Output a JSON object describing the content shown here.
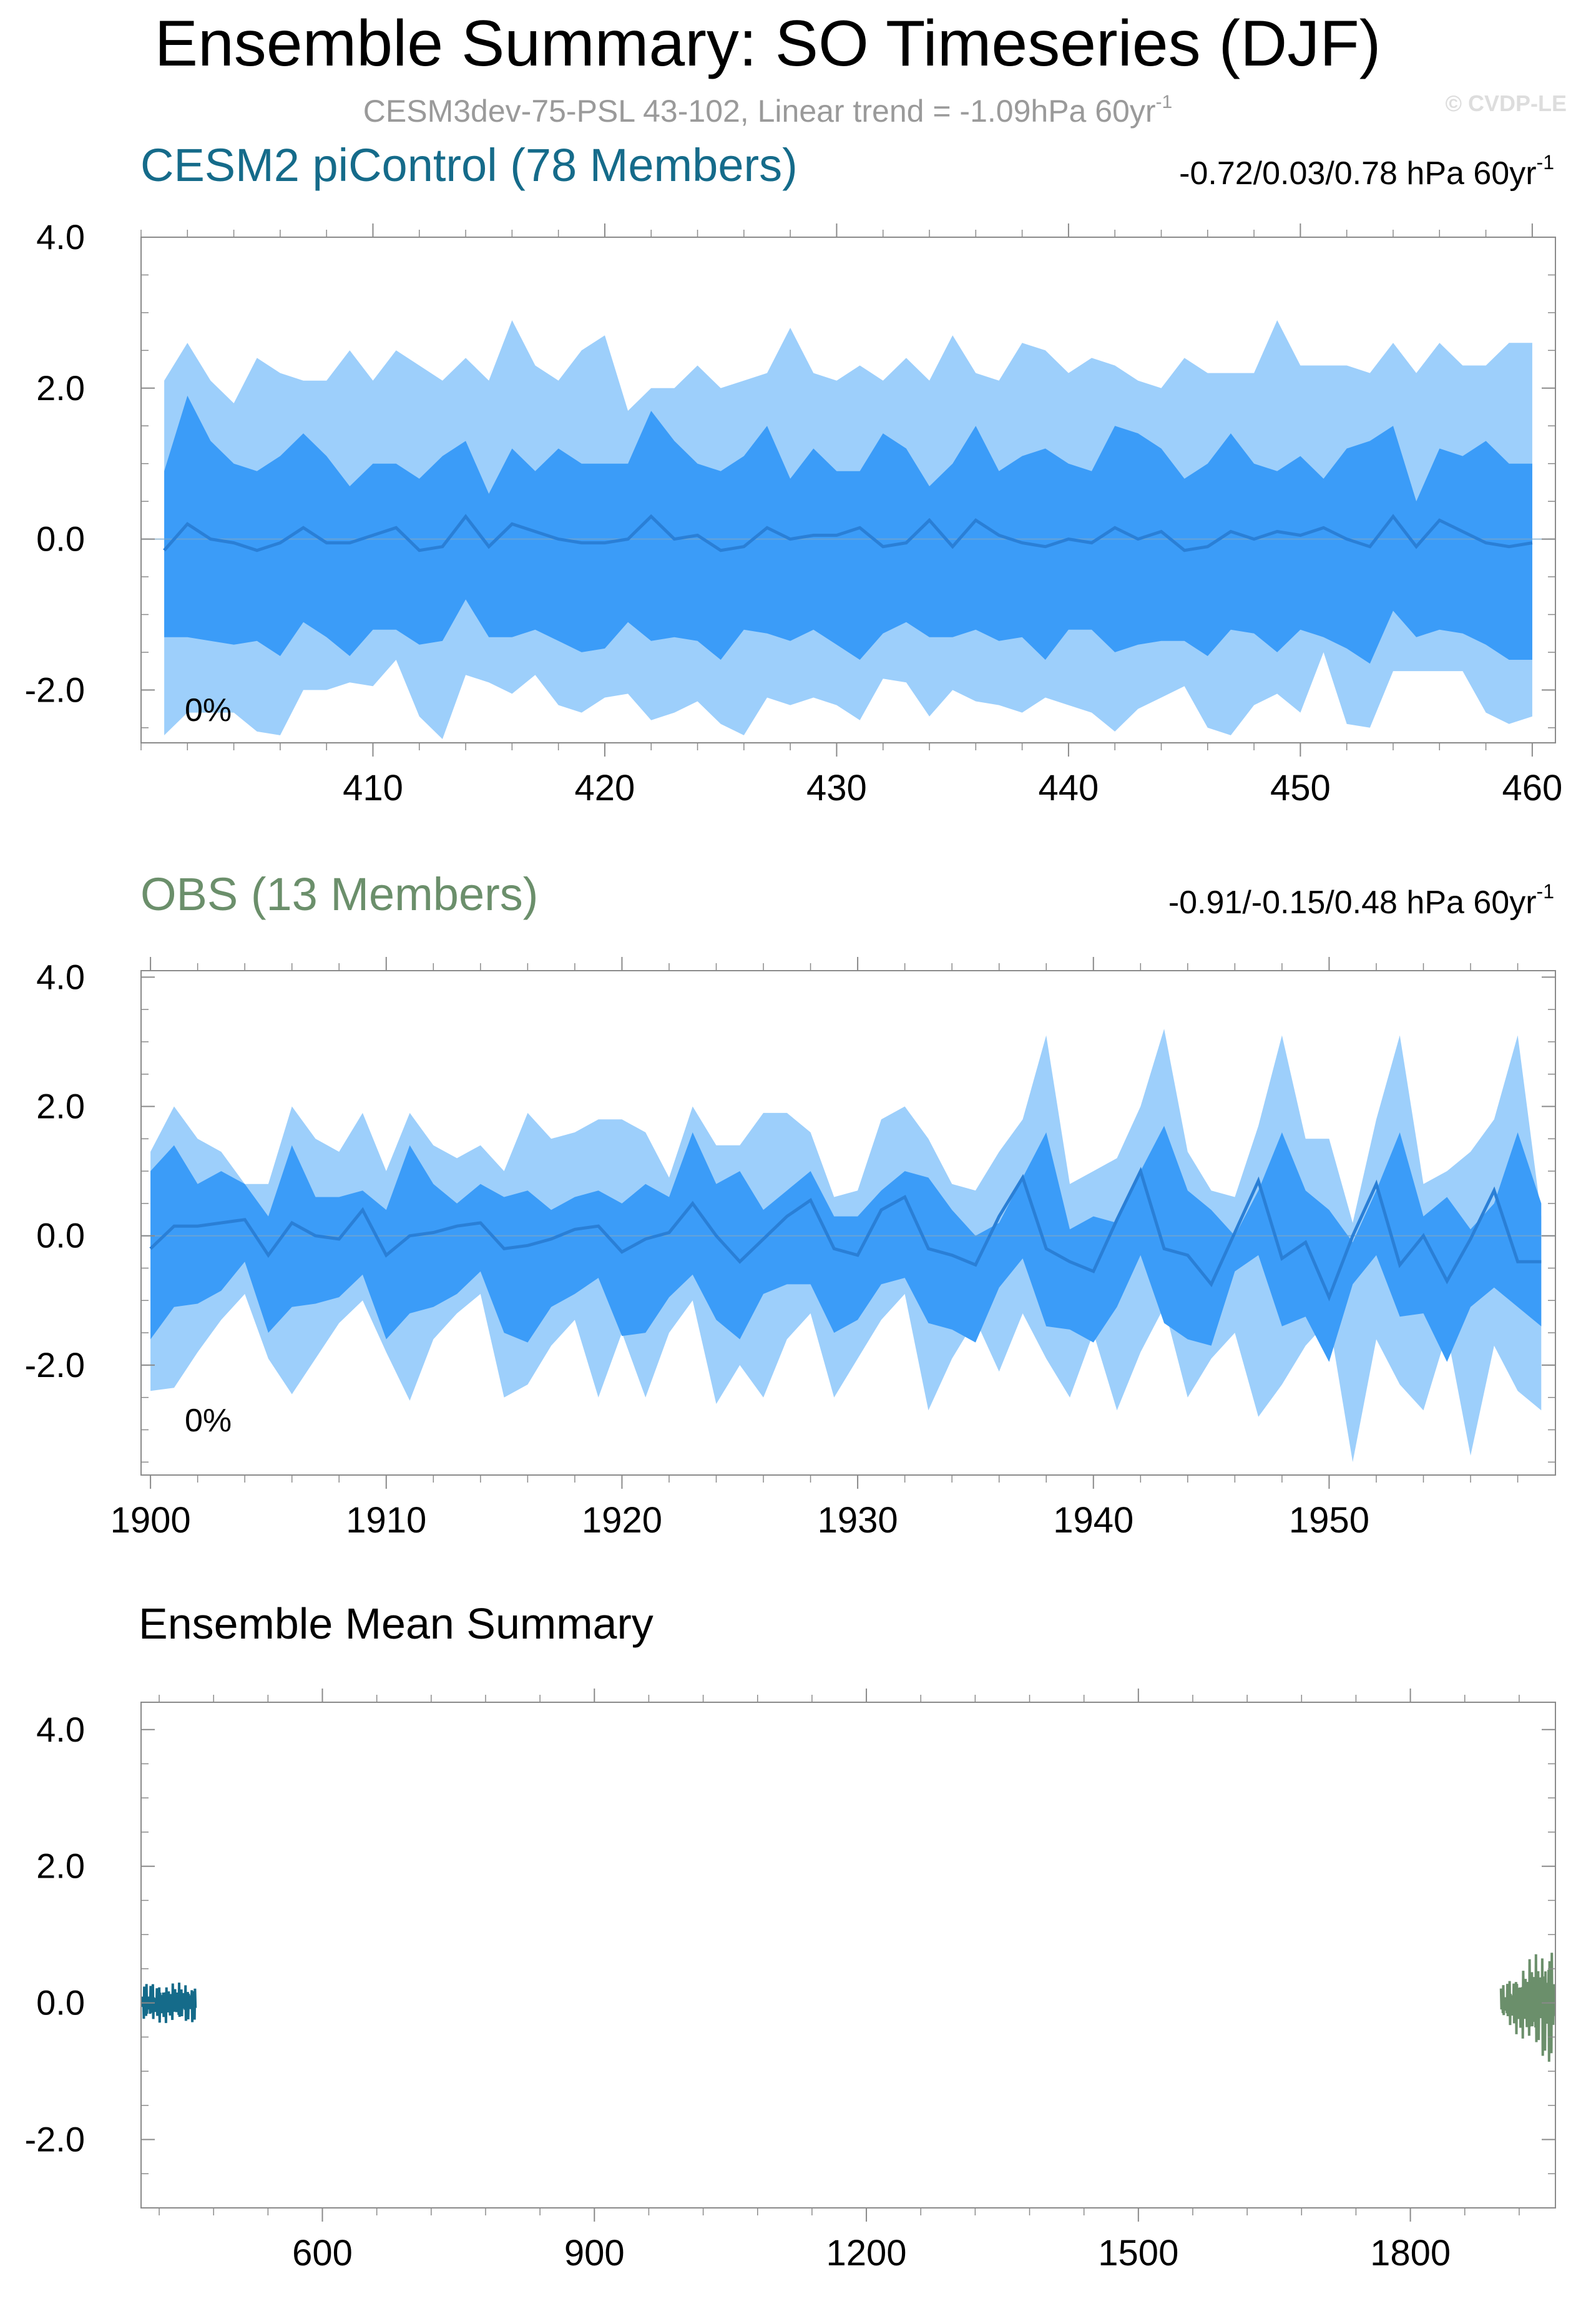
{
  "header": {
    "title": "Ensemble Summary: SO Timeseries (DJF)",
    "subtitle": "CESM3dev-75-PSL 43-102, Linear trend = -1.09hPa 60yr",
    "subtitle_sup": "-1",
    "watermark": "© CVDP-LE"
  },
  "colors": {
    "outer_band": "#9dcffb",
    "inner_band": "#3b9cf8",
    "mean_line": "#2a7fd6",
    "cesm_label": "#156b8a",
    "obs_label": "#6b8f6b",
    "axis": "#000000"
  },
  "chart_data": [
    {
      "type": "area",
      "title": "CESM2 piControl (78 Members)",
      "trend_text": "-0.72/0.03/0.78 hPa 60yr",
      "trend_sup": "-1",
      "percent_label": "0%",
      "xlim": [
        400,
        461
      ],
      "ylim": [
        -2.7,
        4.0
      ],
      "yticks": [
        4.0,
        2.0,
        0.0,
        -2.0
      ],
      "ytick_labels": [
        "4.0",
        "2.0",
        "0.0",
        "-2.0"
      ],
      "xticks": [
        410,
        420,
        430,
        440,
        450,
        460
      ],
      "xtick_labels": [
        "410",
        "420",
        "430",
        "440",
        "450",
        "460"
      ],
      "x": [
        401,
        402,
        403,
        404,
        405,
        406,
        407,
        408,
        409,
        410,
        411,
        412,
        413,
        414,
        415,
        416,
        417,
        418,
        419,
        420,
        421,
        422,
        423,
        424,
        425,
        426,
        427,
        428,
        429,
        430,
        431,
        432,
        433,
        434,
        435,
        436,
        437,
        438,
        439,
        440,
        441,
        442,
        443,
        444,
        445,
        446,
        447,
        448,
        449,
        450,
        451,
        452,
        453,
        454,
        455,
        456,
        457,
        458,
        459,
        460
      ],
      "outer_hi": [
        2.1,
        2.6,
        2.1,
        1.8,
        2.4,
        2.2,
        2.1,
        2.1,
        2.5,
        2.1,
        2.5,
        2.3,
        2.1,
        2.4,
        2.1,
        2.9,
        2.3,
        2.1,
        2.5,
        2.7,
        1.7,
        2.0,
        2.0,
        2.3,
        2.0,
        2.1,
        2.2,
        2.8,
        2.2,
        2.1,
        2.3,
        2.1,
        2.4,
        2.1,
        2.7,
        2.2,
        2.1,
        2.6,
        2.5,
        2.2,
        2.4,
        2.3,
        2.1,
        2.0,
        2.4,
        2.2,
        2.2,
        2.2,
        2.9,
        2.3,
        2.3,
        2.3,
        2.2,
        2.6,
        2.2,
        2.6,
        2.3,
        2.3,
        2.6,
        2.6
      ],
      "inner_hi": [
        0.9,
        1.9,
        1.3,
        1.0,
        0.9,
        1.1,
        1.4,
        1.1,
        0.7,
        1.0,
        1.0,
        0.8,
        1.1,
        1.3,
        0.6,
        1.2,
        0.9,
        1.2,
        1.0,
        1.0,
        1.0,
        1.7,
        1.3,
        1.0,
        0.9,
        1.1,
        1.5,
        0.8,
        1.2,
        0.9,
        0.9,
        1.4,
        1.2,
        0.7,
        1.0,
        1.5,
        0.9,
        1.1,
        1.2,
        1.0,
        0.9,
        1.5,
        1.4,
        1.2,
        0.8,
        1.0,
        1.4,
        1.0,
        0.9,
        1.1,
        0.8,
        1.2,
        1.3,
        1.5,
        0.5,
        1.2,
        1.1,
        1.3,
        1.0,
        1.0
      ],
      "mean": [
        -0.15,
        0.2,
        0.0,
        -0.05,
        -0.15,
        -0.05,
        0.15,
        -0.05,
        -0.05,
        0.05,
        0.15,
        -0.15,
        -0.1,
        0.3,
        -0.1,
        0.2,
        0.1,
        0.0,
        -0.05,
        -0.05,
        0.0,
        0.3,
        0.0,
        0.05,
        -0.15,
        -0.1,
        0.15,
        0.0,
        0.05,
        0.05,
        0.15,
        -0.1,
        -0.05,
        0.25,
        -0.1,
        0.25,
        0.05,
        -0.05,
        -0.1,
        0.0,
        -0.05,
        0.15,
        0.0,
        0.1,
        -0.15,
        -0.1,
        0.1,
        0.0,
        0.1,
        0.05,
        0.15,
        0.0,
        -0.1,
        0.3,
        -0.1,
        0.25,
        0.1,
        -0.05,
        -0.1,
        -0.05
      ],
      "inner_lo": [
        -1.3,
        -1.3,
        -1.35,
        -1.4,
        -1.35,
        -1.55,
        -1.1,
        -1.3,
        -1.55,
        -1.2,
        -1.2,
        -1.4,
        -1.35,
        -0.8,
        -1.3,
        -1.3,
        -1.2,
        -1.35,
        -1.5,
        -1.45,
        -1.1,
        -1.35,
        -1.3,
        -1.35,
        -1.6,
        -1.2,
        -1.25,
        -1.35,
        -1.2,
        -1.4,
        -1.6,
        -1.25,
        -1.1,
        -1.3,
        -1.3,
        -1.2,
        -1.35,
        -1.3,
        -1.6,
        -1.2,
        -1.2,
        -1.5,
        -1.4,
        -1.35,
        -1.35,
        -1.55,
        -1.2,
        -1.25,
        -1.5,
        -1.2,
        -1.3,
        -1.45,
        -1.65,
        -0.95,
        -1.3,
        -1.2,
        -1.25,
        -1.4,
        -1.6,
        -1.6
      ],
      "outer_lo": [
        -2.6,
        -2.3,
        -2.3,
        -2.3,
        -2.55,
        -2.6,
        -2.0,
        -2.0,
        -1.9,
        -1.95,
        -1.6,
        -2.35,
        -2.65,
        -1.8,
        -1.9,
        -2.05,
        -1.8,
        -2.2,
        -2.3,
        -2.1,
        -2.05,
        -2.4,
        -2.3,
        -2.15,
        -2.45,
        -2.6,
        -2.1,
        -2.2,
        -2.1,
        -2.2,
        -2.4,
        -1.85,
        -1.9,
        -2.35,
        -2.0,
        -2.15,
        -2.2,
        -2.3,
        -2.1,
        -2.2,
        -2.3,
        -2.55,
        -2.25,
        -2.1,
        -1.95,
        -2.5,
        -2.6,
        -2.2,
        -2.05,
        -2.3,
        -1.5,
        -2.45,
        -2.5,
        -1.75,
        -1.75,
        -1.75,
        -1.75,
        -2.3,
        -2.45,
        -2.35
      ]
    },
    {
      "type": "area",
      "title": "OBS (13 Members)",
      "trend_text": "-0.91/-0.15/0.48 hPa 60yr",
      "trend_sup": "-1",
      "percent_label": "0%",
      "xlim": [
        1899.6,
        1959.6
      ],
      "ylim": [
        -3.7,
        4.1
      ],
      "yticks": [
        4.0,
        2.0,
        0.0,
        -2.0
      ],
      "ytick_labels": [
        "4.0",
        "2.0",
        "0.0",
        "-2.0"
      ],
      "xticks": [
        1900,
        1910,
        1920,
        1930,
        1940,
        1950
      ],
      "xtick_labels": [
        "1900",
        "1910",
        "1920",
        "1930",
        "1940",
        "1950"
      ],
      "x": [
        1900,
        1901,
        1902,
        1903,
        1904,
        1905,
        1906,
        1907,
        1908,
        1909,
        1910,
        1911,
        1912,
        1913,
        1914,
        1915,
        1916,
        1917,
        1918,
        1919,
        1920,
        1921,
        1922,
        1923,
        1924,
        1925,
        1926,
        1927,
        1928,
        1929,
        1930,
        1931,
        1932,
        1933,
        1934,
        1935,
        1936,
        1937,
        1938,
        1939,
        1940,
        1941,
        1942,
        1943,
        1944,
        1945,
        1946,
        1947,
        1948,
        1949,
        1950,
        1951,
        1952,
        1953,
        1954,
        1955,
        1956,
        1957,
        1958,
        1959
      ],
      "outer_hi": [
        1.3,
        2.0,
        1.5,
        1.3,
        0.8,
        0.8,
        2.0,
        1.5,
        1.3,
        1.9,
        1.0,
        1.9,
        1.4,
        1.2,
        1.4,
        1.0,
        1.9,
        1.5,
        1.6,
        1.8,
        1.8,
        1.6,
        0.9,
        2.0,
        1.4,
        1.4,
        1.9,
        1.9,
        1.6,
        0.6,
        0.7,
        1.8,
        2.0,
        1.5,
        0.8,
        0.7,
        1.3,
        1.8,
        3.1,
        0.8,
        1.0,
        1.2,
        2.0,
        3.2,
        1.3,
        0.7,
        0.6,
        1.7,
        3.1,
        1.5,
        1.5,
        0.2,
        1.8,
        3.1,
        0.8,
        1.0,
        1.3,
        1.8,
        3.1,
        0.3
      ],
      "inner_hi": [
        1.0,
        1.4,
        0.8,
        1.0,
        0.8,
        0.3,
        1.4,
        0.6,
        0.6,
        0.7,
        0.4,
        1.4,
        0.8,
        0.5,
        0.8,
        0.6,
        0.7,
        0.4,
        0.6,
        0.7,
        0.5,
        0.8,
        0.6,
        1.6,
        0.8,
        1.0,
        0.4,
        0.7,
        1.0,
        0.3,
        0.3,
        0.7,
        1.0,
        0.9,
        0.4,
        0.0,
        0.2,
        0.9,
        1.6,
        0.1,
        0.3,
        0.2,
        1.0,
        1.7,
        0.7,
        0.4,
        0.0,
        0.7,
        1.6,
        0.7,
        0.4,
        -0.1,
        0.7,
        1.6,
        0.3,
        0.6,
        0.1,
        0.5,
        1.6,
        0.5
      ],
      "mean": [
        -0.2,
        0.15,
        0.15,
        0.2,
        0.25,
        -0.3,
        0.2,
        0.0,
        -0.05,
        0.4,
        -0.3,
        0.0,
        0.05,
        0.15,
        0.2,
        -0.2,
        -0.15,
        -0.05,
        0.1,
        0.15,
        -0.25,
        -0.05,
        0.05,
        0.5,
        0.0,
        -0.4,
        -0.05,
        0.3,
        0.55,
        -0.2,
        -0.3,
        0.4,
        0.6,
        -0.2,
        -0.3,
        -0.45,
        0.3,
        0.9,
        -0.2,
        -0.4,
        -0.55,
        0.25,
        1.0,
        -0.2,
        -0.3,
        -0.75,
        0.05,
        0.85,
        -0.35,
        -0.1,
        -0.95,
        0.0,
        0.8,
        -0.45,
        0.0,
        -0.7,
        -0.05,
        0.7,
        -0.4,
        -0.4
      ],
      "inner_lo": [
        -1.6,
        -1.1,
        -1.05,
        -0.85,
        -0.4,
        -1.5,
        -1.1,
        -1.05,
        -0.95,
        -0.6,
        -1.6,
        -1.2,
        -1.1,
        -0.9,
        -0.55,
        -1.5,
        -1.65,
        -1.1,
        -0.9,
        -0.65,
        -1.55,
        -1.5,
        -0.95,
        -0.6,
        -1.3,
        -1.6,
        -0.9,
        -0.75,
        -0.75,
        -1.5,
        -1.3,
        -0.75,
        -0.65,
        -1.35,
        -1.45,
        -1.65,
        -0.8,
        -0.35,
        -1.4,
        -1.45,
        -1.65,
        -1.1,
        -0.3,
        -1.35,
        -1.6,
        -1.7,
        -0.55,
        -0.3,
        -1.4,
        -1.25,
        -1.95,
        -0.75,
        -0.3,
        -1.25,
        -1.2,
        -1.95,
        -1.1,
        -0.8,
        -1.1,
        -1.4
      ],
      "outer_lo": [
        -2.4,
        -2.35,
        -1.8,
        -1.3,
        -0.9,
        -1.9,
        -2.45,
        -1.9,
        -1.35,
        -1.0,
        -1.8,
        -2.55,
        -1.6,
        -1.2,
        -0.9,
        -2.5,
        -2.3,
        -1.7,
        -1.3,
        -2.5,
        -1.5,
        -2.5,
        -1.5,
        -1.0,
        -2.6,
        -2.0,
        -2.5,
        -1.6,
        -1.2,
        -2.5,
        -1.9,
        -1.3,
        -0.9,
        -2.7,
        -1.9,
        -1.3,
        -2.1,
        -1.2,
        -1.9,
        -2.5,
        -1.5,
        -2.7,
        -1.8,
        -1.1,
        -2.5,
        -1.9,
        -1.5,
        -2.8,
        -2.3,
        -1.7,
        -1.3,
        -3.5,
        -1.6,
        -2.3,
        -2.7,
        -1.5,
        -3.4,
        -1.7,
        -2.4,
        -2.7
      ]
    },
    {
      "type": "line",
      "title": "Ensemble Mean Summary",
      "xlim": [
        400,
        1960
      ],
      "ylim": [
        -3.0,
        4.4
      ],
      "yticks": [
        4.0,
        2.0,
        0.0,
        -2.0
      ],
      "ytick_labels": [
        "4.0",
        "2.0",
        "0.0",
        "-2.0"
      ],
      "xticks": [
        600,
        900,
        1200,
        1500,
        1800
      ],
      "xtick_labels": [
        "600",
        "900",
        "1200",
        "1500",
        "1800"
      ],
      "series": [
        {
          "color": "#156b8a",
          "x_from": 401,
          "x_to": 460,
          "amplitude": 0.3
        },
        {
          "color": "#6b8f6b",
          "x_from": 1900,
          "x_to": 1959,
          "amplitude": 1.0
        }
      ]
    }
  ]
}
